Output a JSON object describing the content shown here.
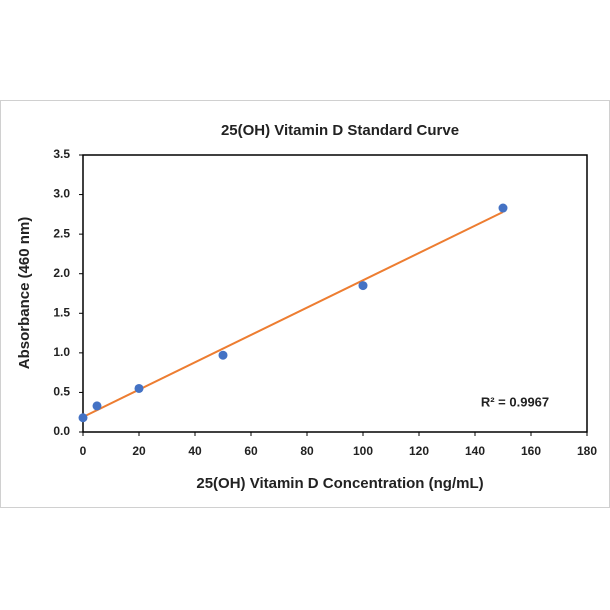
{
  "chart_data": {
    "type": "scatter",
    "title": "25(OH) Vitamin D Standard Curve",
    "x_label": "25(OH) Vitamin D Concentration (ng/mL)",
    "y_label": "Absorbance (460 nm)",
    "series": [
      {
        "color": "#4472c4",
        "x": [
          0,
          5,
          20,
          50,
          100,
          150
        ],
        "values": [
          0.18,
          0.33,
          0.55,
          0.97,
          1.85,
          2.83
        ]
      }
    ],
    "trendline": {
      "color": "#ed7d31",
      "x": [
        0,
        150
      ],
      "values": [
        0.19,
        2.78
      ]
    },
    "annotation": "R² = 0.9967",
    "xlim": [
      0,
      180
    ],
    "xticks": [
      0,
      20,
      40,
      60,
      80,
      100,
      120,
      140,
      160,
      180
    ],
    "ylim": [
      0,
      3.5
    ],
    "yticks": [
      {
        "value": 0,
        "label": "0.0"
      },
      {
        "value": 0.5,
        "label": "0.5"
      },
      {
        "value": 1,
        "label": "1.0"
      },
      {
        "value": 1.5,
        "label": "1.5"
      },
      {
        "value": 2,
        "label": "2.0"
      },
      {
        "value": 2.5,
        "label": "2.5"
      },
      {
        "value": 3,
        "label": "3.0"
      },
      {
        "value": 3.5,
        "label": "3.5"
      }
    ],
    "grid": false
  }
}
